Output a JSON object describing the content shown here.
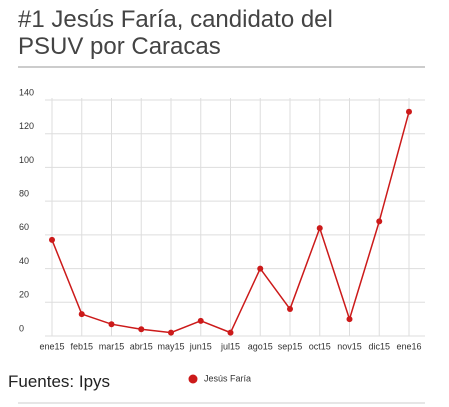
{
  "chart_data": {
    "type": "line",
    "title": "#1 Jesús Faría, candidato del PSUV por Caracas",
    "categories": [
      "ene15",
      "feb15",
      "mar15",
      "abr15",
      "may15",
      "jun15",
      "jul15",
      "ago15",
      "sep15",
      "oct15",
      "nov15",
      "dic15",
      "ene16"
    ],
    "series": [
      {
        "name": "Jesús Faría",
        "color": "#cc1a1a",
        "values": [
          57,
          13,
          7,
          4,
          2,
          9,
          2,
          40,
          16,
          64,
          10,
          68,
          133
        ]
      }
    ],
    "ylim": [
      0,
      140
    ],
    "yticks": [
      0,
      20,
      40,
      60,
      80,
      100,
      120,
      140
    ],
    "grid": true,
    "source": "Fuentes: Ipys"
  }
}
